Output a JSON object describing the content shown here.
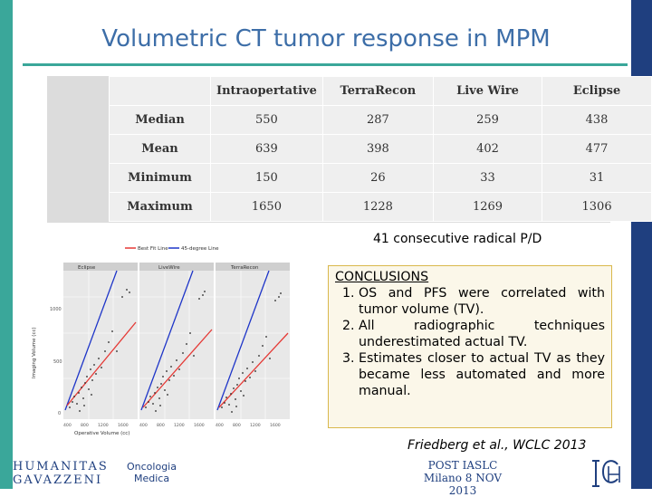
{
  "slide": {
    "title": "Volumetric CT tumor response in MPM",
    "colors": {
      "accent_teal": "#3aa79a",
      "title_blue": "#3d6ea8",
      "navy": "#1f3f7f",
      "best_fit": "#e53935",
      "reference_line": "#1e35c8"
    }
  },
  "table": {
    "headers": [
      "",
      "Intraopertative",
      "TerraRecon",
      "Live Wire",
      "Eclipse"
    ],
    "rows": [
      {
        "label": "Median",
        "values": [
          "550",
          "287",
          "259",
          "438"
        ]
      },
      {
        "label": "Mean",
        "values": [
          "639",
          "398",
          "402",
          "477"
        ]
      },
      {
        "label": "Minimum",
        "values": [
          "150",
          "26",
          "33",
          "31"
        ]
      },
      {
        "label": "Maximum",
        "values": [
          "1650",
          "1228",
          "1269",
          "1306"
        ]
      }
    ]
  },
  "note": "41 consecutive radical P/D",
  "figure": {
    "legend": [
      "Best Fit Line",
      "45-degree Line"
    ],
    "panels": [
      "Eclipse",
      "LiveWire",
      "TerraRecon"
    ],
    "ylabel": "Imaging Volume (cc)",
    "xlabel": "Operative Volume (cc)",
    "x_ticks": [
      "400",
      "800",
      "1200",
      "1600"
    ],
    "y_ticks": [
      "1000",
      "500",
      "0"
    ]
  },
  "conclusions": {
    "heading": "CONCLUSIONS",
    "items": [
      "OS and PFS were correlated with tumor volume (TV).",
      "All radiographic techniques underestimated actual TV.",
      "Estimates closer to actual TV as they became less automated and more manual."
    ]
  },
  "citation": "Friedberg et al., WCLC 2013",
  "footer": {
    "logo1_line1": "HUMANITAS",
    "logo1_line2": "GAVAZZENI",
    "logo2_line1": "Oncologia",
    "logo2_line2": "Medica",
    "post_line1": "POST IASLC",
    "post_line2": "Milano 8 NOV 2013"
  }
}
